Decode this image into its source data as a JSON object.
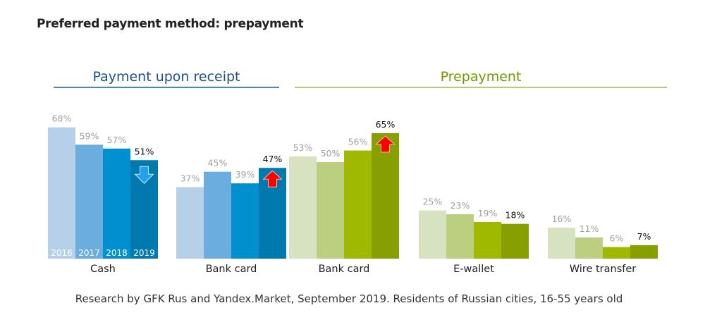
{
  "title": "Preferred payment method: prepayment",
  "source": "Research by GFK Rus and Yandex.Market, September 2019. Residents of Russian cities, 16-55 years old",
  "chart_data": {
    "type": "bar",
    "title": "Preferred payment method: prepayment",
    "years": [
      "2016",
      "2017",
      "2018",
      "2019"
    ],
    "sections": [
      {
        "label": "Payment upon receipt",
        "color": "#4a86c5",
        "groups": [
          0,
          1
        ]
      },
      {
        "label": "Prepayment",
        "color": "#b5c97a",
        "groups": [
          2,
          3,
          4
        ]
      }
    ],
    "groups": [
      {
        "category": "Cash",
        "values": [
          68,
          59,
          57,
          51
        ],
        "trend": "down",
        "colors": [
          "#b7d0e9",
          "#6badde",
          "#0090cf",
          "#0079af"
        ]
      },
      {
        "category": "Bank card",
        "values": [
          37,
          45,
          39,
          47
        ],
        "trend": "up",
        "colors": [
          "#b7d0e9",
          "#6badde",
          "#0090cf",
          "#0079af"
        ]
      },
      {
        "category": "Bank card",
        "values": [
          53,
          50,
          56,
          65
        ],
        "trend": "up",
        "colors": [
          "#d7e2c0",
          "#bccf80",
          "#9fb800",
          "#87a000"
        ]
      },
      {
        "category": "E-wallet",
        "values": [
          25,
          23,
          19,
          18
        ],
        "trend": null,
        "colors": [
          "#d7e2c0",
          "#bccf80",
          "#9fb800",
          "#87a000"
        ]
      },
      {
        "category": "Wire transfer",
        "values": [
          16,
          11,
          6,
          7
        ],
        "trend": null,
        "colors": [
          "#d7e2c0",
          "#bccf80",
          "#9fb800",
          "#87a000"
        ]
      }
    ],
    "value_suffix": "%",
    "ylim": [
      0,
      70
    ],
    "grid": false
  }
}
